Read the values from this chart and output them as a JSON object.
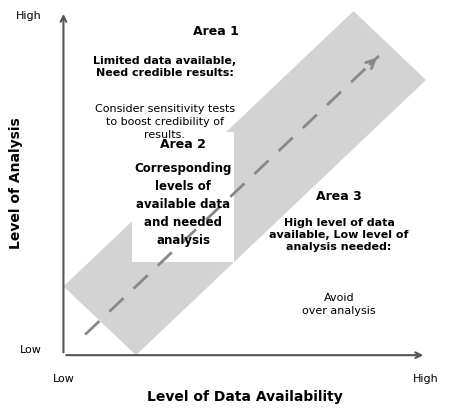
{
  "xlabel": "Level of Data Availability",
  "ylabel": "Level of Analysis",
  "xlabel_low": "Low",
  "xlabel_high": "High",
  "ylabel_low": "Low",
  "ylabel_high": "High",
  "area1_title": "Area 1",
  "area1_bold": "Limited data available,\nNeed credible results:",
  "area1_normal": "Consider sensitivity tests\nto boost credibility of\nresults.",
  "area2_title": "Area 2",
  "area2_bold": "Corresponding\nlevels of\navailable data\nand needed\nanalysis",
  "area3_title": "Area 3",
  "area3_bold": "High level of data\navailable, Low level of\nanalysis needed:",
  "area3_normal": "Avoid\nover analysis",
  "band_color": "#d3d3d3",
  "background_color": "#ffffff",
  "arrow_color": "#888888",
  "text_color": "#000000",
  "axis_color": "#555555"
}
